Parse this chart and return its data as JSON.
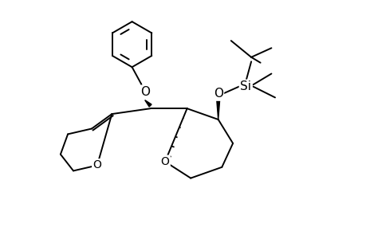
{
  "bg_color": "#ffffff",
  "line_color": "#000000",
  "line_width": 1.4,
  "fig_width": 4.6,
  "fig_height": 3.0,
  "dpi": 100,
  "xlim": [
    0,
    10
  ],
  "ylim": [
    0,
    6.5
  ]
}
